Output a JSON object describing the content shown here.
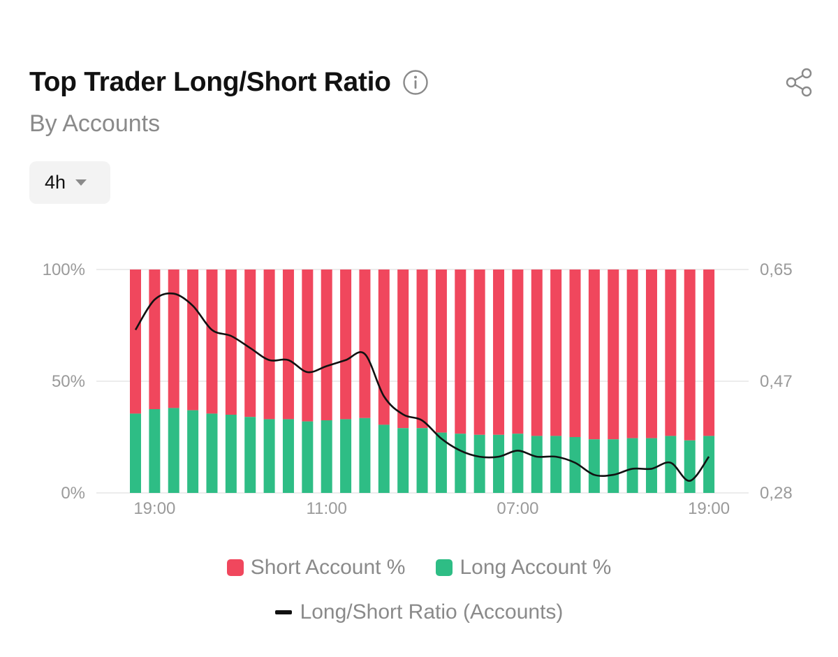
{
  "header": {
    "title": "Top Trader Long/Short Ratio",
    "subtitle": "By Accounts",
    "interval": "4h"
  },
  "legend": {
    "short_label": "Short Account %",
    "long_label": "Long Account %",
    "ratio_label": "Long/Short Ratio (Accounts)"
  },
  "colors": {
    "short": "#f0475d",
    "long": "#2ebd85",
    "line": "#111111",
    "grid": "#e6e6e6"
  },
  "chart_data": {
    "type": "bar",
    "title": "Top Trader Long/Short Ratio",
    "subtitle": "By Accounts",
    "x_tick_labels": [
      "19:00",
      "11:00",
      "07:00",
      "19:00"
    ],
    "x_tick_indices": [
      1,
      10,
      20,
      30
    ],
    "left_axis": {
      "ticks": [
        "0%",
        "50%",
        "100%"
      ],
      "range": [
        0,
        100
      ]
    },
    "right_axis": {
      "ticks": [
        "0,28",
        "0,47",
        "0,65"
      ],
      "range": [
        0.28,
        0.65
      ]
    },
    "series": [
      {
        "name": "Long Account %",
        "type": "stacked-bar",
        "values": [
          35.5,
          37.5,
          38,
          37,
          35.5,
          35,
          34,
          33,
          33,
          32,
          32.5,
          33,
          33.5,
          30.5,
          29,
          29,
          27,
          26.5,
          26,
          26,
          26.5,
          25.5,
          25.5,
          25,
          24,
          24,
          24.5,
          24.5,
          25.5,
          23.5,
          25.5
        ]
      },
      {
        "name": "Short Account %",
        "type": "stacked-bar",
        "values": [
          64.5,
          62.5,
          62,
          63,
          64.5,
          65,
          66,
          67,
          67,
          68,
          67.5,
          67,
          66.5,
          69.5,
          71,
          71,
          73,
          73.5,
          74,
          74,
          73.5,
          74.5,
          74.5,
          75,
          76,
          76,
          75.5,
          75.5,
          74.5,
          76.5,
          74.5
        ]
      },
      {
        "name": "Long/Short Ratio (Accounts)",
        "type": "line",
        "axis": "right",
        "values": [
          0.55,
          0.6,
          0.61,
          0.59,
          0.55,
          0.54,
          0.52,
          0.5,
          0.5,
          0.48,
          0.49,
          0.5,
          0.51,
          0.44,
          0.41,
          0.4,
          0.37,
          0.35,
          0.34,
          0.34,
          0.35,
          0.34,
          0.34,
          0.33,
          0.31,
          0.31,
          0.32,
          0.32,
          0.33,
          0.3,
          0.34
        ]
      }
    ]
  }
}
